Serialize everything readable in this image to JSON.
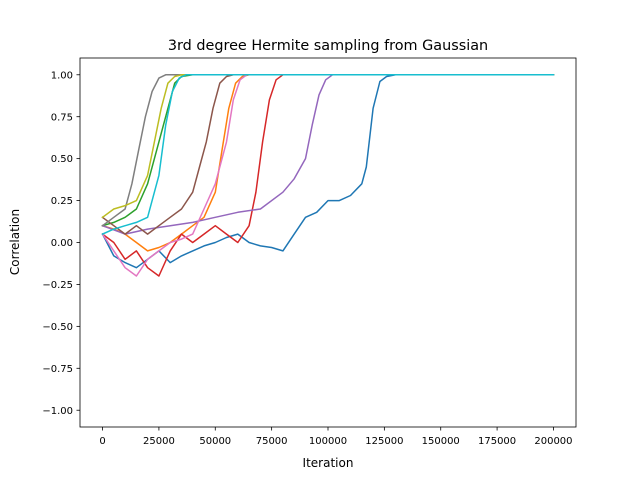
{
  "chart_data": {
    "type": "line",
    "title": "3rd degree Hermite sampling from Gaussian",
    "xlabel": "Iteration",
    "ylabel": "Correlation",
    "xlim": [
      -10000,
      210000
    ],
    "ylim": [
      -1.1,
      1.1
    ],
    "xticks": [
      0,
      25000,
      50000,
      75000,
      100000,
      125000,
      150000,
      175000,
      200000
    ],
    "yticks": [
      -1.0,
      -0.75,
      -0.5,
      -0.25,
      0.0,
      0.25,
      0.5,
      0.75,
      1.0
    ],
    "xtick_labels": [
      "0",
      "25000",
      "50000",
      "75000",
      "100000",
      "125000",
      "150000",
      "175000",
      "200000"
    ],
    "ytick_labels": [
      "−1.00",
      "−0.75",
      "−0.50",
      "−0.25",
      "0.00",
      "0.25",
      "0.50",
      "0.75",
      "1.00"
    ],
    "grid": false,
    "legend": "none",
    "series": [
      {
        "color": "#1f77b4",
        "x": [
          0,
          5000,
          10000,
          15000,
          20000,
          25000,
          30000,
          35000,
          40000,
          45000,
          50000,
          55000,
          60000,
          65000,
          70000,
          75000,
          80000,
          85000,
          90000,
          95000,
          100000,
          105000,
          110000,
          115000,
          117000,
          120000,
          123000,
          126000,
          130000,
          140000,
          200000
        ],
        "y": [
          0.05,
          -0.08,
          -0.12,
          -0.15,
          -0.1,
          -0.05,
          -0.12,
          -0.08,
          -0.05,
          -0.02,
          0.0,
          0.03,
          0.05,
          0.0,
          -0.02,
          -0.03,
          -0.05,
          0.05,
          0.15,
          0.18,
          0.25,
          0.25,
          0.28,
          0.35,
          0.45,
          0.8,
          0.96,
          0.99,
          1.0,
          1.0,
          1.0
        ]
      },
      {
        "color": "#ff7f0e",
        "x": [
          0,
          5000,
          10000,
          15000,
          20000,
          25000,
          30000,
          35000,
          40000,
          45000,
          50000,
          53000,
          56000,
          59000,
          62000,
          65000,
          70000,
          80000,
          200000
        ],
        "y": [
          0.1,
          0.08,
          0.05,
          0.0,
          -0.05,
          -0.03,
          0.0,
          0.05,
          0.1,
          0.15,
          0.3,
          0.55,
          0.8,
          0.95,
          0.99,
          1.0,
          1.0,
          1.0,
          1.0
        ]
      },
      {
        "color": "#2ca02c",
        "x": [
          0,
          5000,
          10000,
          15000,
          20000,
          25000,
          30000,
          32000,
          35000,
          40000,
          50000,
          200000
        ],
        "y": [
          0.1,
          0.12,
          0.15,
          0.2,
          0.35,
          0.6,
          0.85,
          0.95,
          0.99,
          1.0,
          1.0,
          1.0
        ]
      },
      {
        "color": "#d62728",
        "x": [
          0,
          5000,
          10000,
          15000,
          20000,
          25000,
          30000,
          35000,
          40000,
          45000,
          50000,
          55000,
          60000,
          65000,
          68000,
          71000,
          74000,
          77000,
          80000,
          90000,
          200000
        ],
        "y": [
          0.05,
          0.0,
          -0.1,
          -0.05,
          -0.15,
          -0.2,
          -0.05,
          0.05,
          0.0,
          0.05,
          0.1,
          0.05,
          0.0,
          0.1,
          0.3,
          0.6,
          0.85,
          0.97,
          1.0,
          1.0,
          1.0
        ]
      },
      {
        "color": "#9467bd",
        "x": [
          0,
          10000,
          20000,
          30000,
          40000,
          50000,
          60000,
          70000,
          80000,
          85000,
          90000,
          93000,
          96000,
          99000,
          102000,
          110000,
          200000
        ],
        "y": [
          0.1,
          0.05,
          0.08,
          0.1,
          0.12,
          0.15,
          0.18,
          0.2,
          0.3,
          0.38,
          0.5,
          0.7,
          0.88,
          0.97,
          1.0,
          1.0,
          1.0
        ]
      },
      {
        "color": "#8c564b",
        "x": [
          0,
          5000,
          10000,
          15000,
          20000,
          25000,
          30000,
          35000,
          40000,
          43000,
          46000,
          49000,
          52000,
          55000,
          58000,
          65000,
          200000
        ],
        "y": [
          0.15,
          0.1,
          0.05,
          0.1,
          0.05,
          0.1,
          0.15,
          0.2,
          0.3,
          0.45,
          0.6,
          0.8,
          0.95,
          0.99,
          1.0,
          1.0,
          1.0
        ]
      },
      {
        "color": "#e377c2",
        "x": [
          0,
          5000,
          10000,
          15000,
          20000,
          25000,
          30000,
          35000,
          40000,
          45000,
          50000,
          55000,
          58000,
          61000,
          64000,
          70000,
          200000
        ],
        "y": [
          0.05,
          -0.05,
          -0.15,
          -0.2,
          -0.1,
          -0.05,
          0.0,
          0.02,
          0.05,
          0.2,
          0.35,
          0.6,
          0.85,
          0.97,
          1.0,
          1.0,
          1.0
        ]
      },
      {
        "color": "#7f7f7f",
        "x": [
          0,
          5000,
          10000,
          13000,
          16000,
          19000,
          22000,
          25000,
          28000,
          32000,
          200000
        ],
        "y": [
          0.1,
          0.15,
          0.2,
          0.35,
          0.55,
          0.75,
          0.9,
          0.98,
          1.0,
          1.0,
          1.0
        ]
      },
      {
        "color": "#bcbd22",
        "x": [
          0,
          5000,
          10000,
          15000,
          20000,
          23000,
          26000,
          29000,
          32000,
          35000,
          40000,
          200000
        ],
        "y": [
          0.15,
          0.2,
          0.22,
          0.25,
          0.4,
          0.6,
          0.8,
          0.95,
          0.99,
          1.0,
          1.0,
          1.0
        ]
      },
      {
        "color": "#17becf",
        "x": [
          0,
          5000,
          10000,
          15000,
          20000,
          25000,
          28000,
          31000,
          34000,
          37000,
          45000,
          200000
        ],
        "y": [
          0.05,
          0.08,
          0.1,
          0.12,
          0.15,
          0.4,
          0.7,
          0.9,
          0.98,
          1.0,
          1.0,
          1.0
        ]
      }
    ]
  }
}
